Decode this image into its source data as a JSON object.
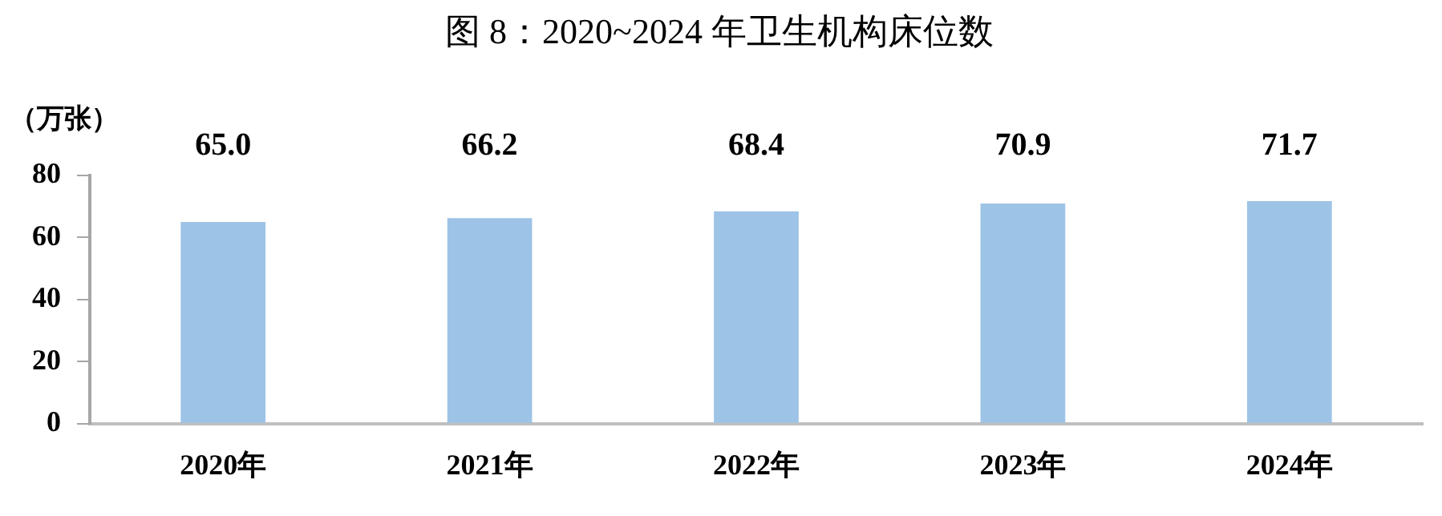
{
  "chart_data": {
    "type": "bar",
    "title": "图 8：2020~2024 年卫生机构床位数",
    "ylabel": "（万张）",
    "categories": [
      "2020年",
      "2021年",
      "2022年",
      "2023年",
      "2024年"
    ],
    "values": [
      65.0,
      66.2,
      68.4,
      70.9,
      71.7
    ],
    "color": "#9dc3e6",
    "ylim": [
      0,
      80
    ],
    "yticks": [
      0,
      20,
      40,
      60,
      80
    ],
    "grid": false,
    "legend": false,
    "value_labels": [
      "65.0",
      "66.2",
      "68.4",
      "70.9",
      "71.7"
    ]
  }
}
